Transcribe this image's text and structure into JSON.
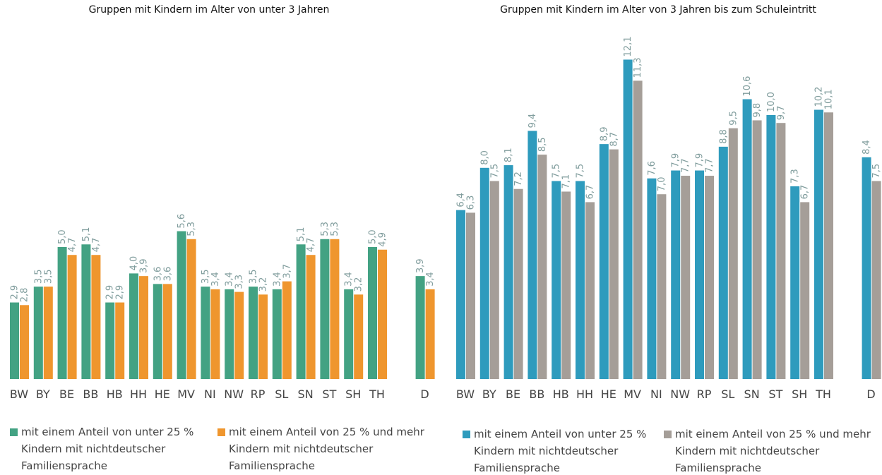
{
  "chart_data": [
    {
      "type": "bar",
      "title": "Gruppen mit Kindern im Alter von unter 3 Jahren",
      "categories": [
        "BW",
        "BY",
        "BE",
        "BB",
        "HB",
        "HH",
        "HE",
        "MV",
        "NI",
        "NW",
        "RP",
        "SL",
        "SN",
        "ST",
        "SH",
        "TH",
        "D"
      ],
      "series": [
        {
          "name": "mit einem Anteil von unter 25 % Kindern mit nichtdeutscher Familiensprache",
          "color": "#43a283",
          "values": [
            2.9,
            3.5,
            5.0,
            5.1,
            2.9,
            4.0,
            3.6,
            5.6,
            3.5,
            3.4,
            3.5,
            3.4,
            5.1,
            5.3,
            3.4,
            5.0,
            3.9
          ],
          "value_labels": [
            "2,9",
            "3,5",
            "5,0",
            "5,1",
            "2,9",
            "4,0",
            "3,6",
            "5,6",
            "3,5",
            "3,4",
            "3,5",
            "3,4",
            "5,1",
            "5,3",
            "3,4",
            "5,0",
            "3,9"
          ]
        },
        {
          "name": "mit einem Anteil von 25 % und mehr Kindern mit nichtdeutscher Familiensprache",
          "color": "#ef962e",
          "values": [
            2.8,
            3.5,
            4.7,
            4.7,
            2.9,
            3.9,
            3.6,
            5.3,
            3.4,
            3.3,
            3.2,
            3.7,
            4.7,
            5.3,
            3.2,
            4.9,
            3.4
          ],
          "value_labels": [
            "2,8",
            "3,5",
            "4,7",
            "4,7",
            "2,9",
            "3,9",
            "3,6",
            "5,3",
            "3,4",
            "3,3",
            "3,2",
            "3,7",
            "4,7",
            "5,3",
            "3,2",
            "4,9",
            "3,4"
          ]
        }
      ]
    },
    {
      "type": "bar",
      "title": "Gruppen mit Kindern im Alter von 3 Jahren bis zum Schuleintritt",
      "categories": [
        "BW",
        "BY",
        "BE",
        "BB",
        "HB",
        "HH",
        "HE",
        "MV",
        "NI",
        "NW",
        "RP",
        "SL",
        "SN",
        "ST",
        "SH",
        "TH",
        "D"
      ],
      "series": [
        {
          "name": "mit einem Anteil von unter 25 % Kindern mit nichtdeutscher Familiensprache",
          "color": "#2e9bbd",
          "values": [
            6.4,
            8.0,
            8.1,
            9.4,
            7.5,
            7.5,
            8.9,
            12.1,
            7.6,
            7.9,
            7.9,
            8.8,
            10.6,
            10.0,
            7.3,
            10.2,
            8.4
          ],
          "value_labels": [
            "6,4",
            "8,0",
            "8,1",
            "9,4",
            "7,5",
            "7,5",
            "8,9",
            "12,1",
            "7,6",
            "7,9",
            "7,9",
            "8,8",
            "10,6",
            "10,0",
            "7,3",
            "10,2",
            "8,4"
          ]
        },
        {
          "name": "mit einem Anteil von 25 % und mehr Kindern mit nichtdeutscher Familiensprache",
          "color": "#a59e98",
          "values": [
            6.3,
            7.5,
            7.2,
            8.5,
            7.1,
            6.7,
            8.7,
            11.3,
            7.0,
            7.7,
            7.7,
            9.5,
            9.8,
            9.7,
            6.7,
            10.1,
            7.5
          ],
          "value_labels": [
            "6,3",
            "7,5",
            "7,2",
            "8,5",
            "7,1",
            "6,7",
            "8,7",
            "11,3",
            "7,0",
            "7,7",
            "7,7",
            "9,5",
            "9,8",
            "9,7",
            "6,7",
            "10,1",
            "7,5"
          ]
        }
      ]
    }
  ]
}
